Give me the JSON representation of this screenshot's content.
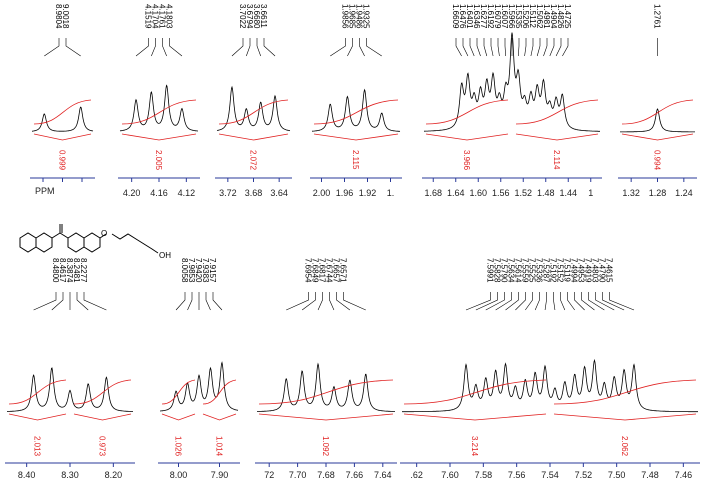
{
  "axis_label": "PPM",
  "molecule_label": "OH",
  "panels": [
    {
      "peaks": [
        "8.9804",
        "9.0018"
      ],
      "integrals": [
        "0.999"
      ],
      "ticks": []
    },
    {
      "peaks": [
        "4.1519",
        "4.1704",
        "4.1761",
        "4.1803"
      ],
      "integrals": [
        "2.005"
      ],
      "ticks": [
        "4.20",
        "4.16",
        "4.12"
      ]
    },
    {
      "peaks": [
        "3.7022",
        "3.6794",
        "3.6680",
        "3.6611"
      ],
      "integrals": [
        "2.072"
      ],
      "ticks": [
        "3.72",
        "3.68",
        "3.64"
      ]
    },
    {
      "peaks": [
        "1.9856",
        "1.9685",
        "1.9486",
        "1.9325"
      ],
      "integrals": [
        "2.115"
      ],
      "ticks": [
        "2.00",
        "1.96",
        "1.92",
        "1."
      ]
    },
    {
      "peaks": [
        "1.6609",
        "1.6476",
        "1.6401",
        "1.6346",
        "1.6277",
        "1.6192",
        "1.6079",
        "1.6007",
        "1.5966",
        "1.5335",
        "1.5206",
        "1.5112",
        "1.5062",
        "1.4981",
        "1.4904",
        "1.4826",
        "1.4725"
      ],
      "integrals": [
        "3.966",
        "2.114"
      ],
      "ticks": [
        "1.68",
        "1.64",
        "1.60",
        "1.56",
        "1.52",
        "1.48",
        "1.44",
        "1"
      ]
    },
    {
      "peaks": [
        "1.2761"
      ],
      "integrals": [
        "0.994"
      ],
      "ticks": [
        "1.32",
        "1.28",
        "1.24"
      ]
    },
    {
      "peaks": [
        "8.4800",
        "8.4617",
        "8.3874",
        "8.2481",
        "8.2277"
      ],
      "integrals": [
        "2.013",
        "0.973"
      ],
      "ticks": [
        "8.40",
        "8.30",
        "8.20"
      ]
    },
    {
      "peaks": [
        "8.0058",
        "7.9853",
        "7.9420",
        "7.9383",
        "7.9157"
      ],
      "integrals": [
        "1.026",
        "1.014"
      ],
      "ticks": [
        "8.00",
        "7.90"
      ]
    },
    {
      "peaks": [
        "7.6954",
        "7.6849",
        "7.6817",
        "7.6744",
        "7.6657",
        "7.6571"
      ],
      "integrals": [
        "1.092"
      ],
      "ticks": [
        "72",
        "7.70",
        "7.68",
        "7.66",
        "7.64"
      ]
    },
    {
      "peaks": [
        "7.5991",
        "7.5828",
        "7.5790",
        "7.5634",
        "7.5614",
        "7.5559",
        "7.5525",
        "7.5336",
        "7.5287",
        "7.5192",
        "7.5152",
        "7.5119",
        "7.4994",
        "7.4953",
        "7.4919",
        "7.4803",
        "7.4790",
        "7.4615"
      ],
      "integrals": [
        "3.214",
        "2.062"
      ],
      "ticks": [
        ".62",
        "7.60",
        "7.58",
        "7.56",
        "7.54",
        "7.52",
        "7.50",
        "7.48",
        "7.46"
      ]
    }
  ]
}
